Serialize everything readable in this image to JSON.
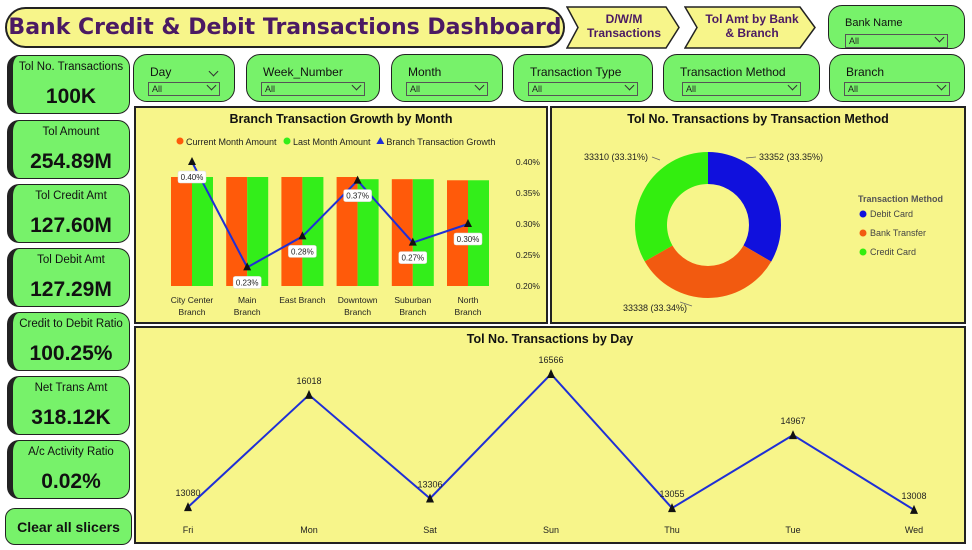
{
  "header": {
    "title": "Bank Credit & Debit Transactions Dashboard",
    "nav1": "D/W/M Transactions",
    "nav2": "Tol Amt by Bank & Branch"
  },
  "slicers": {
    "bank_name": {
      "label": "Bank Name",
      "value": "All"
    },
    "day": {
      "label": "Day",
      "value": "All"
    },
    "week": {
      "label": "Week_Number",
      "value": "All"
    },
    "month": {
      "label": "Month",
      "value": "All"
    },
    "txn_type": {
      "label": "Transaction Type",
      "value": "All"
    },
    "txn_method": {
      "label": "Transaction Method",
      "value": "All"
    },
    "branch": {
      "label": "Branch",
      "value": "All"
    }
  },
  "kpis": {
    "total_txn": {
      "label": "Tol No. Transactions",
      "value": "100K"
    },
    "total_amount": {
      "label": "Tol Amount",
      "value": "254.89M"
    },
    "credit_amt": {
      "label": "Tol Credit Amt",
      "value": "127.60M"
    },
    "debit_amt": {
      "label": "Tol Debit Amt",
      "value": "127.29M"
    },
    "ratio": {
      "label": "Credit to Debit Ratio",
      "value": "100.25%"
    },
    "net": {
      "label": "Net Trans Amt",
      "value": "318.12K"
    },
    "activity": {
      "label": "A/c Activity Ratio",
      "value": "0.02%"
    }
  },
  "clear_button": "Clear all slicers",
  "colors": {
    "current": "#ff5a0a",
    "last": "#33ee1a",
    "growth": "#1f2fd6",
    "debit": "#1010dd",
    "bank_transfer": "#f25a10",
    "credit": "#33ee0f"
  },
  "chart_data": [
    {
      "type": "bar",
      "title": "Branch Transaction Growth by Month",
      "categories": [
        "City Center Branch",
        "Main Branch",
        "East Branch",
        "Downtown Branch",
        "Suburban Branch",
        "North Branch"
      ],
      "category_lines": [
        [
          "City Center",
          "Branch"
        ],
        [
          "Main",
          "Branch"
        ],
        [
          "East Branch"
        ],
        [
          "Downtown",
          "Branch"
        ],
        [
          "Suburban",
          "Branch"
        ],
        [
          "North",
          "Branch"
        ]
      ],
      "series": [
        {
          "name": "Current Month Amount",
          "values": [
            100,
            100,
            100,
            100,
            98,
            97
          ]
        },
        {
          "name": "Last Month Amount",
          "values": [
            100,
            100,
            100,
            98,
            98,
            97
          ]
        },
        {
          "name": "Branch Transaction Growth",
          "values": [
            0.4,
            0.23,
            0.28,
            0.37,
            0.27,
            0.3
          ],
          "labels": [
            "0.40%",
            "0.23%",
            "0.28%",
            "0.37%",
            "0.27%",
            "0.30%"
          ]
        }
      ],
      "y2_ticks": [
        "0.40%",
        "0.35%",
        "0.30%",
        "0.25%",
        "0.20%"
      ],
      "y2lim": [
        0.2,
        0.4
      ]
    },
    {
      "type": "pie",
      "title": "Tol No. Transactions by Transaction Method",
      "legend_title": "Transaction Method",
      "slices": [
        {
          "name": "Debit Card",
          "value": 33352,
          "label": "33352 (33.35%)"
        },
        {
          "name": "Bank Transfer",
          "value": 33338,
          "label": "33338 (33.34%)"
        },
        {
          "name": "Credit Card",
          "value": 33310,
          "label": "33310 (33.31%)"
        }
      ]
    },
    {
      "type": "line",
      "title": "Tol No. Transactions by Day",
      "categories": [
        "Fri",
        "Mon",
        "Sat",
        "Sun",
        "Thu",
        "Tue",
        "Wed"
      ],
      "values": [
        13080,
        16018,
        13306,
        16566,
        13055,
        14967,
        13008
      ],
      "labels": [
        "13080",
        "16018",
        "13306",
        "16566",
        "13055",
        "14967",
        "13008"
      ]
    }
  ]
}
